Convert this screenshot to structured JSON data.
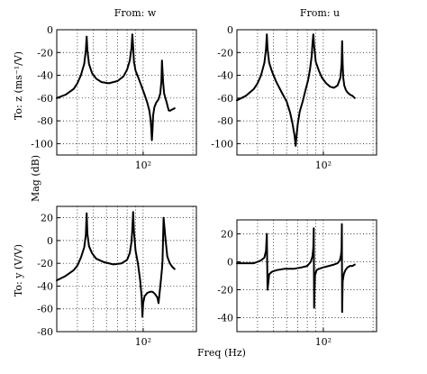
{
  "figure": {
    "col_titles": [
      "From: w",
      "From: u"
    ],
    "row_labels": [
      "To: z (ms⁻¹/V)",
      "To: y (V/V)"
    ],
    "ylabel": "Mag (dB)",
    "xlabel": "Freq (Hz)"
  },
  "chart_data": [
    {
      "type": "line",
      "title": "From: w",
      "ylabel": "To: z (ms⁻¹/V)",
      "xscale": "log",
      "xlim": [
        30,
        210
      ],
      "ylim": [
        -110,
        0
      ],
      "yticks": [
        0,
        -20,
        -40,
        -60,
        -80,
        -100
      ],
      "xticks": [
        {
          "value": 100,
          "label": "10²"
        }
      ],
      "grid": "dotted",
      "series": [
        {
          "x": [
            30,
            34,
            38,
            40,
            42,
            44,
            45,
            45.5,
            46,
            47,
            49,
            52,
            56,
            62,
            70,
            76,
            80,
            83,
            85,
            86,
            87,
            88,
            90,
            94,
            98,
            102,
            106,
            109,
            111,
            112,
            113,
            114,
            115,
            117,
            120,
            124,
            127,
            129,
            130,
            132,
            134,
            137,
            139,
            140,
            141,
            143,
            146,
            150,
            155
          ],
          "y": [
            -60,
            -57,
            -52,
            -47,
            -40,
            -30,
            -18,
            -6,
            -18,
            -30,
            -38,
            -43,
            -46,
            -47,
            -45,
            -41,
            -35,
            -27,
            -16,
            -4,
            -15,
            -28,
            -36,
            -43,
            -50,
            -57,
            -64,
            -71,
            -79,
            -87,
            -97,
            -88,
            -75,
            -68,
            -64,
            -61,
            -56,
            -45,
            -27,
            -45,
            -56,
            -61,
            -64,
            -66,
            -68,
            -71,
            -71,
            -70,
            -69
          ]
        }
      ]
    },
    {
      "type": "line",
      "title": "From: u",
      "xscale": "log",
      "xlim": [
        30,
        210
      ],
      "ylim": [
        -110,
        0
      ],
      "yticks": [
        0,
        -20,
        -40,
        -60,
        -80,
        -100
      ],
      "xticks": [
        {
          "value": 100,
          "label": "10²"
        }
      ],
      "grid": "dotted",
      "series": [
        {
          "x": [
            30,
            34,
            38,
            40,
            42,
            44,
            45,
            45.5,
            46,
            47,
            49,
            52,
            56,
            60,
            63,
            65,
            67,
            68,
            69,
            70,
            72,
            75,
            78,
            81,
            83,
            85,
            86,
            87,
            88,
            90,
            94,
            98,
            104,
            110,
            116,
            122,
            127,
            129,
            130,
            131,
            132,
            134,
            137,
            140,
            145,
            150,
            155
          ],
          "y": [
            -62,
            -58,
            -52,
            -47,
            -40,
            -29,
            -17,
            -4,
            -17,
            -29,
            -37,
            -46,
            -55,
            -63,
            -73,
            -82,
            -93,
            -102,
            -92,
            -83,
            -72,
            -63,
            -53,
            -44,
            -35,
            -23,
            -12,
            -4,
            -14,
            -28,
            -36,
            -42,
            -47,
            -50,
            -51,
            -49,
            -42,
            -30,
            -10,
            -30,
            -42,
            -49,
            -53,
            -55,
            -57,
            -58,
            -60
          ]
        }
      ]
    },
    {
      "type": "line",
      "title": "",
      "ylabel": "To: y (V/V)",
      "xscale": "log",
      "xlim": [
        30,
        210
      ],
      "ylim": [
        -80,
        30
      ],
      "yticks": [
        20,
        0,
        -20,
        -40,
        -60,
        -80
      ],
      "xticks": [
        {
          "value": 100,
          "label": "10²"
        }
      ],
      "grid": "dotted",
      "series": [
        {
          "x": [
            30,
            34,
            38,
            40,
            42,
            44,
            45,
            45.5,
            46,
            47,
            49,
            52,
            58,
            66,
            74,
            80,
            83,
            85,
            86,
            87,
            88,
            90,
            93,
            96,
            98,
            99,
            100,
            102,
            106,
            110,
            114,
            118,
            122,
            124,
            126,
            128,
            129,
            130,
            131,
            133,
            136,
            140,
            145,
            150,
            155
          ],
          "y": [
            -35,
            -31,
            -26,
            -22,
            -15,
            -6,
            5,
            24,
            6,
            -5,
            -11,
            -16,
            -19,
            -21,
            -20,
            -17,
            -11,
            -1,
            10,
            25,
            8,
            -9,
            -20,
            -35,
            -50,
            -67,
            -55,
            -49,
            -46,
            -45,
            -45,
            -47,
            -50,
            -55,
            -45,
            -35,
            -30,
            -25,
            -18,
            20,
            4,
            -14,
            -20,
            -23,
            -25
          ]
        }
      ]
    },
    {
      "type": "line",
      "title": "",
      "xscale": "log",
      "xlim": [
        30,
        210
      ],
      "ylim": [
        -50,
        30
      ],
      "yticks": [
        20,
        0,
        -20,
        -40
      ],
      "xticks": [
        {
          "value": 100,
          "label": "10²"
        }
      ],
      "grid": "dotted",
      "series": [
        {
          "x": [
            30,
            34,
            38,
            40,
            42,
            44,
            45,
            45.5,
            46,
            47,
            49,
            52,
            58,
            66,
            74,
            80,
            84,
            86,
            87,
            87.5,
            88,
            89,
            91,
            94,
            100,
            108,
            116,
            122,
            126,
            128,
            129,
            129.5,
            130,
            131,
            133,
            136,
            140,
            145,
            150,
            155
          ],
          "y": [
            -1,
            -1,
            -1,
            0,
            1,
            3,
            8,
            20,
            -20,
            -9,
            -7,
            -6,
            -5,
            -5,
            -4,
            -3,
            0,
            4,
            10,
            24,
            -33,
            -10,
            -6,
            -5,
            -4,
            -3,
            -2,
            -1,
            1,
            5,
            10,
            27,
            -36,
            -14,
            -9,
            -6,
            -4,
            -3,
            -3,
            -2
          ]
        }
      ]
    }
  ]
}
